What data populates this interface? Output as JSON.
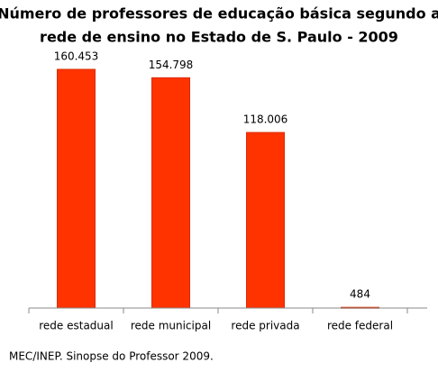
{
  "chart_data": {
    "type": "bar",
    "title": [
      "Número de professores de educação básica segundo a",
      "rede de ensino no Estado de S. Paulo - 2009"
    ],
    "categories": [
      "rede estadual",
      "rede municipal",
      "rede privada",
      "rede federal"
    ],
    "values": [
      160453,
      154798,
      118006,
      484
    ],
    "value_labels": [
      "160.453",
      "154.798",
      "118.006",
      "484"
    ],
    "color": "#ff3300",
    "source": "MEC/INEP. Sinopse do Professor 2009."
  }
}
